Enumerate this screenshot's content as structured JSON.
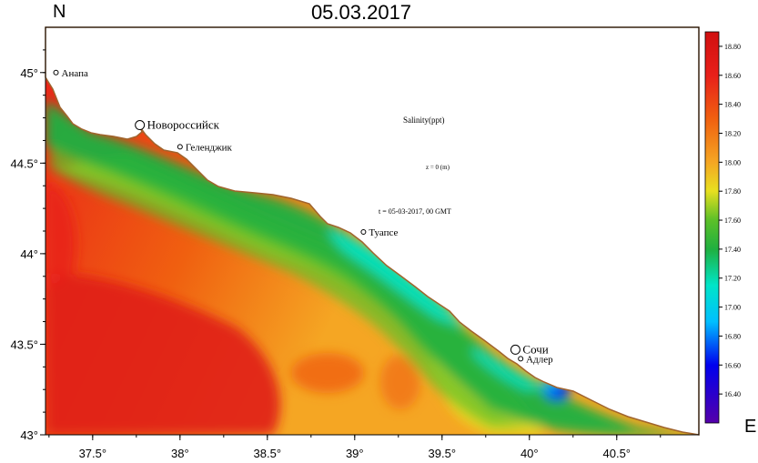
{
  "header": {
    "title": "05.03.2017",
    "north_label": "N",
    "east_label": "E"
  },
  "annotations": {
    "parameter": "Salinity(ppt)",
    "depth": "z = 0 (m)",
    "time": "t = 05-03-2017,  00 GMT"
  },
  "axes": {
    "lon_range": [
      37.23,
      40.97
    ],
    "lat_range": [
      43.0,
      45.25
    ],
    "lon_ticks": [
      {
        "value": 37.5,
        "label": "37.5°"
      },
      {
        "value": 38.0,
        "label": "38°"
      },
      {
        "value": 38.5,
        "label": "38.5°"
      },
      {
        "value": 39.0,
        "label": "39°"
      },
      {
        "value": 39.5,
        "label": "39.5°"
      },
      {
        "value": 40.0,
        "label": "40°"
      },
      {
        "value": 40.5,
        "label": "40.5°"
      }
    ],
    "lat_ticks": [
      {
        "value": 45.0,
        "label": "45°"
      },
      {
        "value": 44.5,
        "label": "44.5°"
      },
      {
        "value": 44.0,
        "label": "44°"
      },
      {
        "value": 43.5,
        "label": "43.5°"
      },
      {
        "value": 43.0,
        "label": "43°"
      }
    ]
  },
  "cities": [
    {
      "name": "Анапа",
      "lon": 37.29,
      "lat": 45.0,
      "marker": "small"
    },
    {
      "name": "Новороссийск",
      "lon": 37.77,
      "lat": 44.71,
      "marker": "large"
    },
    {
      "name": "Геленджик",
      "lon": 38.0,
      "lat": 44.59,
      "marker": "small"
    },
    {
      "name": "Туапсе",
      "lon": 39.05,
      "lat": 44.12,
      "marker": "small"
    },
    {
      "name": "Сочи",
      "lon": 39.92,
      "lat": 43.47,
      "marker": "large"
    },
    {
      "name": "Адлер",
      "lon": 39.95,
      "lat": 43.42,
      "marker": "small"
    }
  ],
  "colorbar": {
    "unit": "ppt",
    "min": 16.2,
    "max": 18.9,
    "tick_labels": [
      "18.80",
      "18.60",
      "18.40",
      "18.20",
      "18.00",
      "17.80",
      "17.60",
      "17.40",
      "17.20",
      "17.00",
      "16.80",
      "16.60",
      "16.40"
    ],
    "stops": [
      {
        "value": 16.2,
        "color": "#5500aa"
      },
      {
        "value": 16.6,
        "color": "#0000ee"
      },
      {
        "value": 16.9,
        "color": "#00bfff"
      },
      {
        "value": 17.15,
        "color": "#00e5c8"
      },
      {
        "value": 17.4,
        "color": "#1fb040"
      },
      {
        "value": 17.6,
        "color": "#5cc028"
      },
      {
        "value": 17.8,
        "color": "#e8e020"
      },
      {
        "value": 18.0,
        "color": "#f5a623"
      },
      {
        "value": 18.3,
        "color": "#f06010"
      },
      {
        "value": 18.6,
        "color": "#e8201a"
      },
      {
        "value": 18.9,
        "color": "#d01010"
      }
    ]
  },
  "colors": {
    "coastline": "#a0642d",
    "land": "#ffffff",
    "frame": "#000000"
  }
}
